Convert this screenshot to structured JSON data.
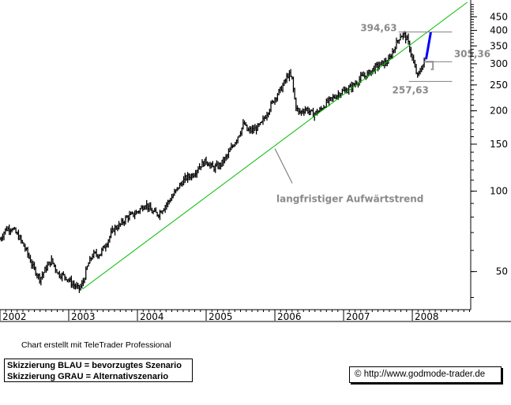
{
  "chart_data": {
    "type": "ohlc",
    "title": "",
    "xlabel": "",
    "ylabel": "",
    "y_scale": "log",
    "ylim": [
      36,
      520
    ],
    "xlim": [
      2002.0,
      2008.85
    ],
    "y_ticks": [
      450,
      400,
      350,
      300,
      250,
      200,
      150,
      100,
      50
    ],
    "x_ticks": [
      {
        "label": "2002",
        "value": 2002.0
      },
      {
        "label": "2003",
        "value": 2003.0
      },
      {
        "label": "2004",
        "value": 2004.0
      },
      {
        "label": "2005",
        "value": 2005.0
      },
      {
        "label": "2006",
        "value": 2006.0
      },
      {
        "label": "2007",
        "value": 2007.0
      },
      {
        "label": "2008",
        "value": 2008.0
      }
    ],
    "price_path": [
      [
        2002.0,
        66
      ],
      [
        2002.08,
        72
      ],
      [
        2002.17,
        73
      ],
      [
        2002.28,
        67
      ],
      [
        2002.38,
        60
      ],
      [
        2002.48,
        52
      ],
      [
        2002.58,
        47
      ],
      [
        2002.68,
        52
      ],
      [
        2002.75,
        55
      ],
      [
        2002.85,
        49
      ],
      [
        2002.95,
        48
      ],
      [
        2003.05,
        45
      ],
      [
        2003.15,
        43
      ],
      [
        2003.2,
        45
      ],
      [
        2003.28,
        53
      ],
      [
        2003.35,
        58
      ],
      [
        2003.45,
        58
      ],
      [
        2003.55,
        64
      ],
      [
        2003.65,
        72
      ],
      [
        2003.75,
        75
      ],
      [
        2003.85,
        80
      ],
      [
        2003.95,
        82
      ],
      [
        2004.05,
        86
      ],
      [
        2004.12,
        90
      ],
      [
        2004.2,
        84
      ],
      [
        2004.3,
        82
      ],
      [
        2004.4,
        88
      ],
      [
        2004.5,
        95
      ],
      [
        2004.6,
        104
      ],
      [
        2004.7,
        112
      ],
      [
        2004.8,
        115
      ],
      [
        2004.9,
        124
      ],
      [
        2005.0,
        130
      ],
      [
        2005.1,
        122
      ],
      [
        2005.2,
        125
      ],
      [
        2005.3,
        135
      ],
      [
        2005.4,
        150
      ],
      [
        2005.5,
        168
      ],
      [
        2005.55,
        180
      ],
      [
        2005.6,
        168
      ],
      [
        2005.7,
        170
      ],
      [
        2005.8,
        178
      ],
      [
        2005.9,
        200
      ],
      [
        2006.0,
        224
      ],
      [
        2006.1,
        244
      ],
      [
        2006.2,
        275
      ],
      [
        2006.25,
        262
      ],
      [
        2006.3,
        210
      ],
      [
        2006.35,
        196
      ],
      [
        2006.45,
        204
      ],
      [
        2006.55,
        194
      ],
      [
        2006.65,
        200
      ],
      [
        2006.75,
        214
      ],
      [
        2006.85,
        224
      ],
      [
        2006.95,
        234
      ],
      [
        2007.05,
        240
      ],
      [
        2007.15,
        250
      ],
      [
        2007.25,
        266
      ],
      [
        2007.35,
        274
      ],
      [
        2007.45,
        290
      ],
      [
        2007.55,
        300
      ],
      [
        2007.65,
        306
      ],
      [
        2007.75,
        350
      ],
      [
        2007.82,
        382
      ],
      [
        2007.88,
        386
      ],
      [
        2007.93,
        366
      ],
      [
        2007.98,
        330
      ],
      [
        2008.03,
        292
      ],
      [
        2008.08,
        268
      ],
      [
        2008.13,
        290
      ],
      [
        2008.16,
        300
      ],
      [
        2008.19,
        312
      ]
    ],
    "series": [
      {
        "type": "trendline",
        "color": "#00bb00",
        "points": [
          [
            2003.2,
            43
          ],
          [
            2008.8,
            510
          ]
        ]
      },
      {
        "type": "scenario",
        "color": "#0000ff",
        "points": [
          [
            2008.2,
            312
          ],
          [
            2008.27,
            395
          ]
        ]
      },
      {
        "type": "scenario",
        "color": "#a0a0a0",
        "points": [
          [
            2008.19,
            305.36
          ],
          [
            2008.3,
            305.36
          ],
          [
            2008.3,
            286
          ],
          [
            2008.27,
            286
          ]
        ]
      }
    ],
    "levels": [
      {
        "value": 394.63,
        "label": "394,63",
        "x_from": 2007.8,
        "x_to": 2008.58
      },
      {
        "value": 305.36,
        "label": "305,36",
        "x_from": 2008.17,
        "x_to": 2008.58
      },
      {
        "value": 257.63,
        "label": "257,63",
        "x_from": 2007.95,
        "x_to": 2008.58
      }
    ],
    "annotations": [
      {
        "text": "langfristiger Aufwärtstrend",
        "x": 2006.0,
        "y": 100,
        "pointer_to": [
          2006.0,
          160
        ]
      }
    ],
    "grid": false,
    "colors": {
      "bars": "#000000",
      "trend": "#00bb00",
      "scenario_main": "#0000ff",
      "scenario_alt": "#a0a0a0",
      "annotation": "#8a8a8a"
    }
  },
  "footer": {
    "credit": "Chart erstellt mit TeleTrader Professional",
    "legend_line1": "Skizzierung BLAU = bevorzugtes Szenario",
    "legend_line2": "Skizzierung GRAU = Alternativszenario",
    "url": "http://www.godmode-trader.de"
  }
}
